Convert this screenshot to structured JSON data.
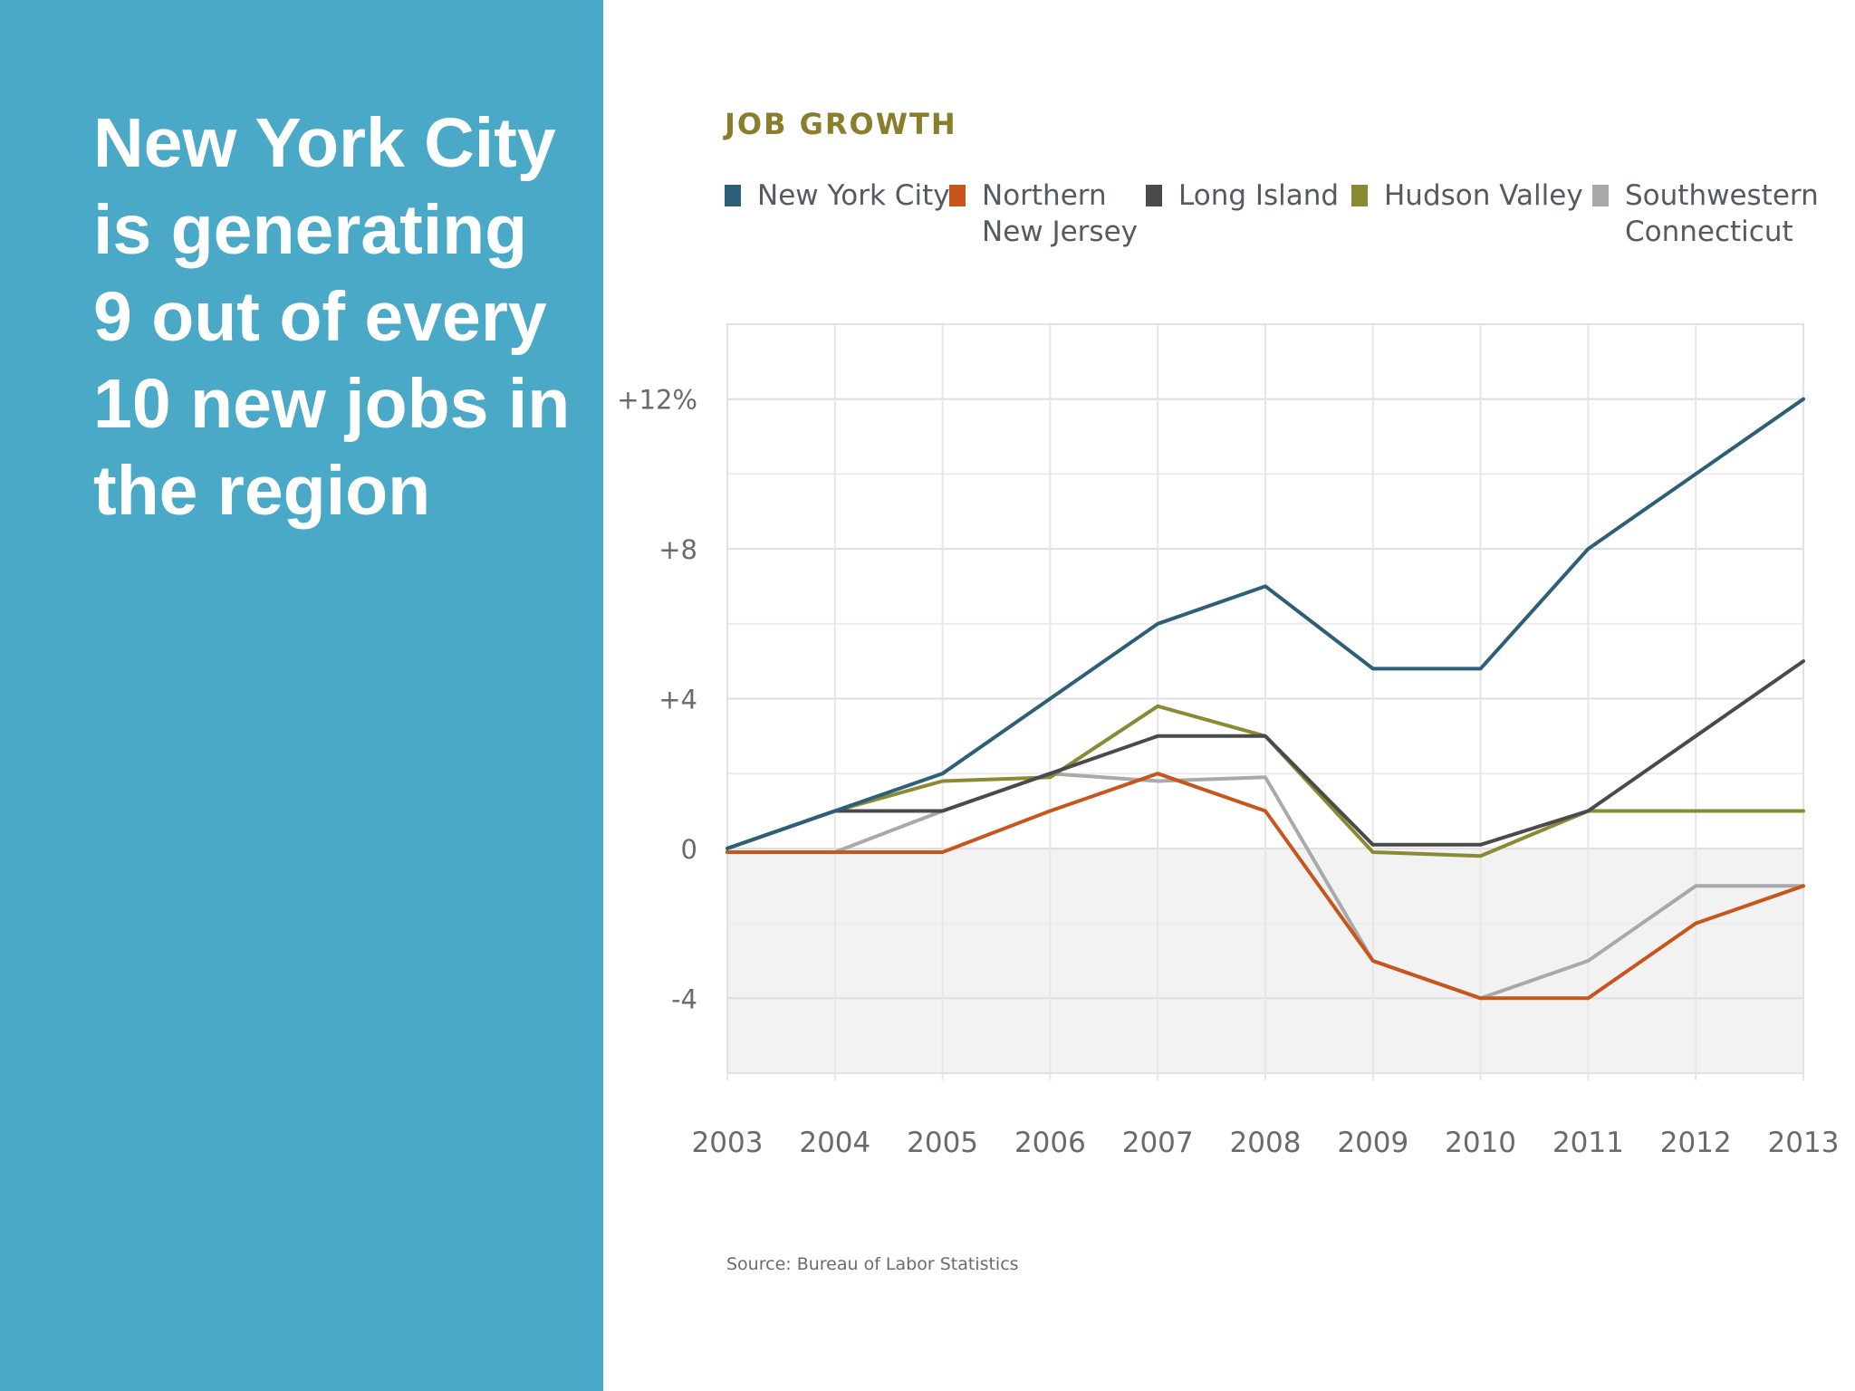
{
  "slide": {
    "headline": "New York City is generating 9 out of every 10 new jobs in the region",
    "panel_color": "#4ba9c8"
  },
  "chart": {
    "source": "Source: Bureau of Labor Statistics"
  },
  "chart_data": {
    "type": "line",
    "title": "JOB GROWTH",
    "xlabel": "",
    "ylabel": "",
    "x": [
      "2003",
      "2004",
      "2005",
      "2006",
      "2007",
      "2008",
      "2009",
      "2010",
      "2011",
      "2012",
      "2013"
    ],
    "ylim": [
      -6,
      14
    ],
    "yticks": [
      {
        "value": 12,
        "label": "+12%"
      },
      {
        "value": 8,
        "label": "+8"
      },
      {
        "value": 4,
        "label": "+4"
      },
      {
        "value": 0,
        "label": "0"
      },
      {
        "value": -4,
        "label": "-4"
      }
    ],
    "grid": true,
    "legend_position": "top",
    "series": [
      {
        "name": "New York City",
        "color": "#2e5f78",
        "values": [
          0,
          1,
          2,
          4,
          6,
          7,
          4.8,
          4.8,
          8,
          10,
          12
        ]
      },
      {
        "name": "Northern\nNew Jersey",
        "color": "#c8561c",
        "values": [
          -0.1,
          -0.1,
          -0.1,
          1,
          2,
          1,
          -3,
          -4,
          -4,
          -2,
          -1
        ]
      },
      {
        "name": "Long Island",
        "color": "#4a4a4a",
        "values": [
          0,
          1,
          1,
          2,
          3,
          3,
          0.1,
          0.1,
          1,
          3,
          5
        ]
      },
      {
        "name": "Hudson Valley",
        "color": "#8a8a32",
        "values": [
          0,
          1,
          1.8,
          1.9,
          3.8,
          3,
          -0.1,
          -0.2,
          1,
          1,
          1
        ]
      },
      {
        "name": "Southwestern\nConnecticut",
        "color": "#a9a9a9",
        "values": [
          -0.1,
          -0.1,
          1,
          2,
          1.8,
          1.9,
          -3,
          -4,
          -3,
          -1,
          -1
        ]
      }
    ]
  }
}
